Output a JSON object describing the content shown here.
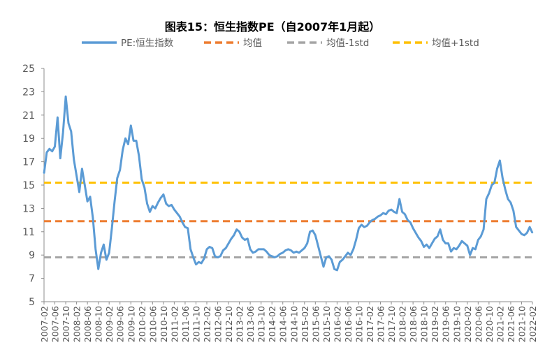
{
  "chart_data": {
    "type": "line",
    "title": "图表15：恒生指数PE（自2007年1月起）",
    "xlabel": "",
    "ylabel": "",
    "ylim": [
      5,
      25
    ],
    "y_ticks": [
      5,
      7,
      9,
      11,
      13,
      15,
      17,
      19,
      21,
      23,
      25
    ],
    "x_tick_labels": [
      "2007-02",
      "2007-06",
      "2007-10",
      "2008-02",
      "2008-06",
      "2008-10",
      "2009-02",
      "2009-06",
      "2009-10",
      "2010-02",
      "2010-06",
      "2010-10",
      "2011-02",
      "2011-06",
      "2011-10",
      "2012-02",
      "2012-06",
      "2012-10",
      "2013-02",
      "2013-06",
      "2013-10",
      "2014-02",
      "2014-06",
      "2014-10",
      "2015-02",
      "2015-06",
      "2015-10",
      "2016-02",
      "2016-06",
      "2016-10",
      "2017-02",
      "2017-06",
      "2017-10",
      "2018-02",
      "2018-06",
      "2018-10",
      "2019-02",
      "2019-06",
      "2019-10",
      "2020-02",
      "2020-06",
      "2020-10",
      "2021-02",
      "2021-06",
      "2021-10",
      "2022-02"
    ],
    "grid": false,
    "legend_position": "top",
    "series": [
      {
        "name": "PE:恒生指数",
        "color": "#5B9BD5",
        "style": "solid",
        "points": [
          [
            "2007-02",
            16.0
          ],
          [
            "2007-03",
            17.8
          ],
          [
            "2007-04",
            18.1
          ],
          [
            "2007-05",
            17.9
          ],
          [
            "2007-06",
            18.3
          ],
          [
            "2007-07",
            20.8
          ],
          [
            "2007-08",
            17.3
          ],
          [
            "2007-09",
            19.5
          ],
          [
            "2007-10",
            22.6
          ],
          [
            "2007-11",
            20.3
          ],
          [
            "2007-12",
            19.6
          ],
          [
            "2008-01",
            17.2
          ],
          [
            "2008-02",
            15.8
          ],
          [
            "2008-03",
            14.4
          ],
          [
            "2008-04",
            16.4
          ],
          [
            "2008-05",
            15.0
          ],
          [
            "2008-06",
            13.6
          ],
          [
            "2008-07",
            14.0
          ],
          [
            "2008-08",
            12.2
          ],
          [
            "2008-09",
            9.5
          ],
          [
            "2008-10",
            7.8
          ],
          [
            "2008-11",
            9.2
          ],
          [
            "2008-12",
            9.9
          ],
          [
            "2009-01",
            8.6
          ],
          [
            "2009-02",
            9.2
          ],
          [
            "2009-03",
            11.3
          ],
          [
            "2009-04",
            13.6
          ],
          [
            "2009-05",
            15.6
          ],
          [
            "2009-06",
            16.3
          ],
          [
            "2009-07",
            18.0
          ],
          [
            "2009-08",
            19.0
          ],
          [
            "2009-09",
            18.5
          ],
          [
            "2009-10",
            20.1
          ],
          [
            "2009-11",
            18.8
          ],
          [
            "2009-12",
            18.8
          ],
          [
            "2010-01",
            17.5
          ],
          [
            "2010-02",
            15.5
          ],
          [
            "2010-03",
            14.8
          ],
          [
            "2010-04",
            13.4
          ],
          [
            "2010-05",
            12.7
          ],
          [
            "2010-06",
            13.2
          ],
          [
            "2010-07",
            13.0
          ],
          [
            "2010-08",
            13.5
          ],
          [
            "2010-09",
            13.9
          ],
          [
            "2010-10",
            14.2
          ],
          [
            "2010-11",
            13.4
          ],
          [
            "2010-12",
            13.2
          ],
          [
            "2011-01",
            13.3
          ],
          [
            "2011-02",
            12.9
          ],
          [
            "2011-03",
            12.6
          ],
          [
            "2011-04",
            12.3
          ],
          [
            "2011-05",
            11.8
          ],
          [
            "2011-06",
            11.4
          ],
          [
            "2011-07",
            11.3
          ],
          [
            "2011-08",
            9.5
          ],
          [
            "2011-09",
            8.8
          ],
          [
            "2011-10",
            8.2
          ],
          [
            "2011-11",
            8.4
          ],
          [
            "2011-12",
            8.3
          ],
          [
            "2012-01",
            8.7
          ],
          [
            "2012-02",
            9.5
          ],
          [
            "2012-03",
            9.7
          ],
          [
            "2012-04",
            9.6
          ],
          [
            "2012-05",
            8.9
          ],
          [
            "2012-06",
            8.8
          ],
          [
            "2012-07",
            8.9
          ],
          [
            "2012-08",
            9.4
          ],
          [
            "2012-09",
            9.6
          ],
          [
            "2012-10",
            10.0
          ],
          [
            "2012-11",
            10.4
          ],
          [
            "2012-12",
            10.7
          ],
          [
            "2013-01",
            11.2
          ],
          [
            "2013-02",
            11.0
          ],
          [
            "2013-03",
            10.5
          ],
          [
            "2013-04",
            10.3
          ],
          [
            "2013-05",
            10.4
          ],
          [
            "2013-06",
            9.5
          ],
          [
            "2013-07",
            9.2
          ],
          [
            "2013-08",
            9.3
          ],
          [
            "2013-09",
            9.5
          ],
          [
            "2013-10",
            9.5
          ],
          [
            "2013-11",
            9.5
          ],
          [
            "2013-12",
            9.3
          ],
          [
            "2014-01",
            9.0
          ],
          [
            "2014-02",
            8.9
          ],
          [
            "2014-03",
            8.8
          ],
          [
            "2014-04",
            8.9
          ],
          [
            "2014-05",
            9.1
          ],
          [
            "2014-06",
            9.2
          ],
          [
            "2014-07",
            9.4
          ],
          [
            "2014-08",
            9.5
          ],
          [
            "2014-09",
            9.4
          ],
          [
            "2014-10",
            9.2
          ],
          [
            "2014-11",
            9.3
          ],
          [
            "2014-12",
            9.2
          ],
          [
            "2015-01",
            9.4
          ],
          [
            "2015-02",
            9.6
          ],
          [
            "2015-03",
            10.0
          ],
          [
            "2015-04",
            11.0
          ],
          [
            "2015-05",
            11.1
          ],
          [
            "2015-06",
            10.7
          ],
          [
            "2015-07",
            9.8
          ],
          [
            "2015-08",
            8.9
          ],
          [
            "2015-09",
            8.0
          ],
          [
            "2015-10",
            8.8
          ],
          [
            "2015-11",
            8.9
          ],
          [
            "2015-12",
            8.6
          ],
          [
            "2016-01",
            7.8
          ],
          [
            "2016-02",
            7.7
          ],
          [
            "2016-03",
            8.4
          ],
          [
            "2016-04",
            8.6
          ],
          [
            "2016-05",
            8.9
          ],
          [
            "2016-06",
            9.2
          ],
          [
            "2016-07",
            9.0
          ],
          [
            "2016-08",
            9.5
          ],
          [
            "2016-09",
            10.3
          ],
          [
            "2016-10",
            11.3
          ],
          [
            "2016-11",
            11.6
          ],
          [
            "2016-12",
            11.4
          ],
          [
            "2017-01",
            11.5
          ],
          [
            "2017-02",
            11.8
          ],
          [
            "2017-03",
            12.0
          ],
          [
            "2017-04",
            12.1
          ],
          [
            "2017-05",
            12.3
          ],
          [
            "2017-06",
            12.4
          ],
          [
            "2017-07",
            12.6
          ],
          [
            "2017-08",
            12.5
          ],
          [
            "2017-09",
            12.8
          ],
          [
            "2017-10",
            12.9
          ],
          [
            "2017-11",
            12.7
          ],
          [
            "2017-12",
            12.6
          ],
          [
            "2018-01",
            13.8
          ],
          [
            "2018-02",
            12.7
          ],
          [
            "2018-03",
            12.5
          ],
          [
            "2018-04",
            12.0
          ],
          [
            "2018-05",
            11.8
          ],
          [
            "2018-06",
            11.3
          ],
          [
            "2018-07",
            10.9
          ],
          [
            "2018-08",
            10.5
          ],
          [
            "2018-09",
            10.2
          ],
          [
            "2018-10",
            9.7
          ],
          [
            "2018-11",
            9.9
          ],
          [
            "2018-12",
            9.6
          ],
          [
            "2019-01",
            10.0
          ],
          [
            "2019-02",
            10.4
          ],
          [
            "2019-03",
            10.6
          ],
          [
            "2019-04",
            11.2
          ],
          [
            "2019-05",
            10.3
          ],
          [
            "2019-06",
            10.0
          ],
          [
            "2019-07",
            10.0
          ],
          [
            "2019-08",
            9.3
          ],
          [
            "2019-09",
            9.6
          ],
          [
            "2019-10",
            9.5
          ],
          [
            "2019-11",
            9.8
          ],
          [
            "2019-12",
            10.2
          ],
          [
            "2020-01",
            10.0
          ],
          [
            "2020-02",
            9.8
          ],
          [
            "2020-03",
            9.0
          ],
          [
            "2020-04",
            9.6
          ],
          [
            "2020-05",
            9.5
          ],
          [
            "2020-06",
            10.3
          ],
          [
            "2020-07",
            10.6
          ],
          [
            "2020-08",
            11.2
          ],
          [
            "2020-09",
            13.8
          ],
          [
            "2020-10",
            14.3
          ],
          [
            "2020-11",
            15.0
          ],
          [
            "2020-12",
            15.2
          ],
          [
            "2021-01",
            16.4
          ],
          [
            "2021-02",
            17.1
          ],
          [
            "2021-03",
            15.6
          ],
          [
            "2021-04",
            14.6
          ],
          [
            "2021-05",
            13.8
          ],
          [
            "2021-06",
            13.5
          ],
          [
            "2021-07",
            12.8
          ],
          [
            "2021-08",
            11.4
          ],
          [
            "2021-09",
            11.1
          ],
          [
            "2021-10",
            10.8
          ],
          [
            "2021-11",
            10.7
          ],
          [
            "2021-12",
            10.9
          ],
          [
            "2022-01",
            11.4
          ],
          [
            "2022-02",
            10.9
          ]
        ]
      },
      {
        "name": "均值",
        "color": "#ED7D31",
        "style": "dashed",
        "value": 11.9
      },
      {
        "name": "均值-1std",
        "color": "#A5A5A5",
        "style": "dashed",
        "value": 8.8
      },
      {
        "name": "均值+1std",
        "color": "#FFC000",
        "style": "dashed",
        "value": 15.2
      }
    ]
  }
}
